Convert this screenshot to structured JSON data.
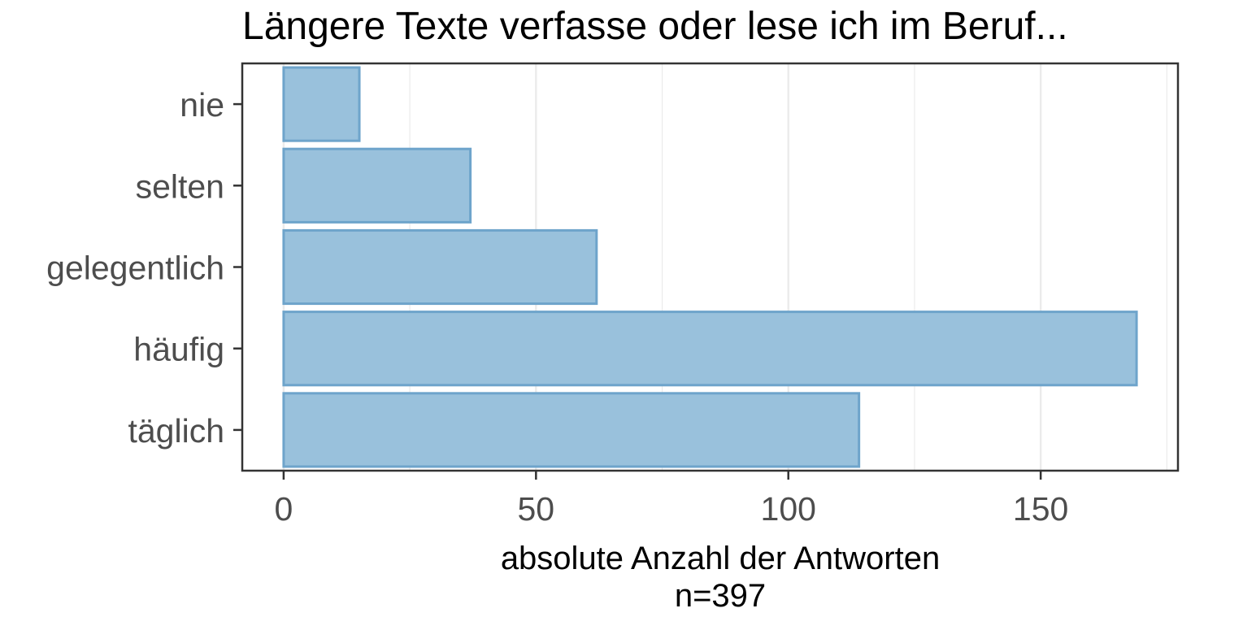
{
  "chart_data": {
    "type": "bar",
    "orientation": "horizontal",
    "title": "Längere Texte verfasse oder lese ich im Beruf...",
    "xlabel": "absolute Anzahl der Antworten",
    "xlabel_note": "n=397",
    "ylabel": "",
    "categories": [
      "nie",
      "selten",
      "gelegentlich",
      "häufig",
      "täglich"
    ],
    "values": [
      15,
      37,
      62,
      169,
      114
    ],
    "xlim": [
      -8.2,
      177.2
    ],
    "xticks": [
      0,
      50,
      100,
      150
    ],
    "xtick_labels": [
      "0",
      "50",
      "100",
      "150"
    ],
    "grid": true,
    "legend": "none",
    "colors": {
      "bar_fill": "#99c1dc",
      "bar_stroke": "#6ea4cb",
      "axis_text": "#4d4d4d",
      "title_text": "#000000",
      "grid": "#ebebeb",
      "panel_border": "#333333"
    }
  }
}
